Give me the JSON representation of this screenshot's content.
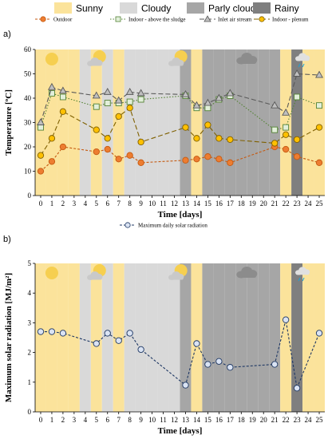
{
  "weather_legend": [
    {
      "label": "Sunny",
      "color": "#fbe39b"
    },
    {
      "label": "Cloudy",
      "color": "#d9d9d9"
    },
    {
      "label": "Parly cloudy",
      "color": "#a6a6a6"
    },
    {
      "label": "Rainy",
      "color": "#7f7f7f"
    }
  ],
  "weather_icons": [
    {
      "name": "sun-icon",
      "day": 1
    },
    {
      "name": "partly-cloudy-icon",
      "day": 5
    },
    {
      "name": "partly-cloudy-icon",
      "day": 12.3
    },
    {
      "name": "cloud-icon",
      "day": 18.5
    },
    {
      "name": "rain-cloud-icon",
      "day": 23.5
    }
  ],
  "day_conditions": [
    "sunny",
    "sunny",
    "sunny",
    "sunny",
    "cloudy",
    "sunny",
    "cloudy",
    "sunny",
    "cloudy",
    "cloudy",
    "cloudy",
    "cloudy",
    "cloudy",
    "parly_cloudy",
    "sunny",
    "parly_cloudy",
    "parly_cloudy",
    "parly_cloudy",
    "parly_cloudy",
    "parly_cloudy",
    "parly_cloudy",
    "parly_cloudy",
    "sunny",
    "rainy",
    "sunny",
    "sunny"
  ],
  "chart_data": [
    {
      "type": "line",
      "panel_label": "a)",
      "xlabel": "Time [days]",
      "ylabel": "Temperature [ºC]",
      "xlim": [
        -0.5,
        25.5
      ],
      "ylim": [
        0,
        60
      ],
      "yticks": [
        0,
        10,
        20,
        30,
        40,
        50,
        60
      ],
      "x": [
        0,
        1,
        2,
        5,
        6,
        7,
        8,
        9,
        13,
        14,
        15,
        16,
        17,
        21,
        22,
        23,
        25
      ],
      "series": [
        {
          "name": "Outdoor",
          "color": "#c55a11",
          "fill": "#ed7d31",
          "marker": "circle",
          "dash": "3 2",
          "values": [
            10,
            14,
            20,
            18,
            19,
            15,
            16.5,
            13.5,
            14.5,
            15,
            16,
            15,
            13.5,
            20,
            19,
            16,
            13.5
          ]
        },
        {
          "name": "Indoor - above the sludge",
          "color": "#548235",
          "fill": "#e2efda",
          "marker": "square",
          "dash": "1.5 2",
          "values": [
            28,
            42,
            40.5,
            36.5,
            38,
            38,
            38.5,
            39.5,
            41,
            36,
            36,
            39.5,
            41,
            27,
            28,
            40.5,
            37
          ]
        },
        {
          "name": "Inlet air stream",
          "color": "#595959",
          "fill": "#bfbfbf",
          "marker": "triangle",
          "dash": "6 3",
          "values": [
            30,
            44.5,
            43,
            41,
            42.5,
            39,
            42.5,
            42,
            41.5,
            37,
            38,
            40,
            42,
            37,
            34,
            50,
            49.5
          ]
        },
        {
          "name": "Indoor - plenum",
          "color": "#7f6000",
          "fill": "#ffc000",
          "marker": "circle",
          "dash": "6 3",
          "values": [
            16.5,
            23.5,
            34.5,
            27,
            23.5,
            32.5,
            36,
            22,
            28,
            23.5,
            29,
            23.5,
            23,
            21.5,
            25,
            23,
            28
          ]
        }
      ]
    },
    {
      "type": "line",
      "panel_label": "b)",
      "xlabel": "Time [days]",
      "ylabel": "Maximum solar radiation [MJ/m²]",
      "xlim": [
        -0.5,
        25.5
      ],
      "ylim": [
        0,
        5
      ],
      "yticks": [
        0,
        1,
        2,
        3,
        4,
        5
      ],
      "x": [
        0,
        1,
        2,
        5,
        6,
        7,
        8,
        9,
        13,
        14,
        15,
        16,
        17,
        21,
        22,
        23,
        25
      ],
      "series": [
        {
          "name": "Maximum daily solar radiation",
          "color": "#1f3864",
          "fill": "#dae3f3",
          "marker": "circle",
          "dash": "3 2",
          "values": [
            2.7,
            2.7,
            2.65,
            2.3,
            2.65,
            2.4,
            2.65,
            2.1,
            0.9,
            2.3,
            1.6,
            1.7,
            1.5,
            1.6,
            3.1,
            0.8,
            2.65
          ]
        }
      ]
    }
  ]
}
